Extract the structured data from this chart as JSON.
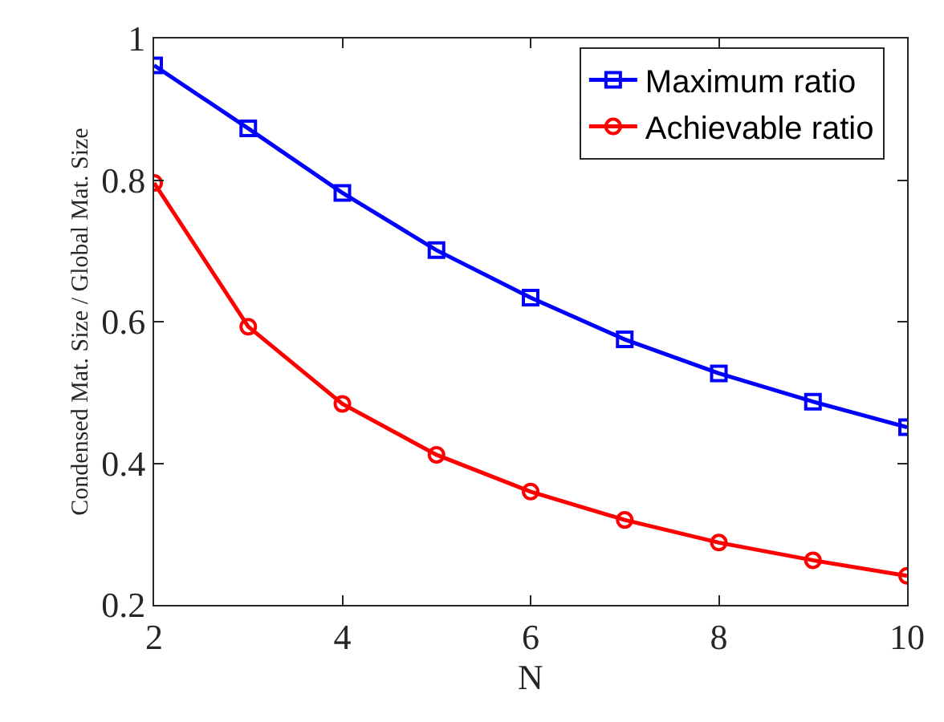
{
  "chart_data": {
    "type": "line",
    "xlabel": "N",
    "ylabel": "Condensed Mat. Size / Global Mat. Size",
    "x": [
      2,
      3,
      4,
      5,
      6,
      7,
      8,
      9,
      10
    ],
    "series": [
      {
        "name": "Maximum ratio",
        "color": "#0000ff",
        "marker": "square",
        "values": [
          0.962,
          0.873,
          0.782,
          0.701,
          0.634,
          0.575,
          0.527,
          0.487,
          0.451
        ]
      },
      {
        "name": "Achievable ratio",
        "color": "#ff0000",
        "marker": "circle",
        "values": [
          0.796,
          0.593,
          0.484,
          0.412,
          0.36,
          0.32,
          0.288,
          0.263,
          0.241
        ]
      }
    ],
    "xlim": [
      2,
      10
    ],
    "xticks": [
      2,
      4,
      6,
      8,
      10
    ],
    "ylim": [
      0.2,
      1
    ],
    "yticks": [
      0.2,
      0.4,
      0.6,
      0.8,
      1
    ],
    "legend": "top right",
    "line_style": "solid"
  }
}
